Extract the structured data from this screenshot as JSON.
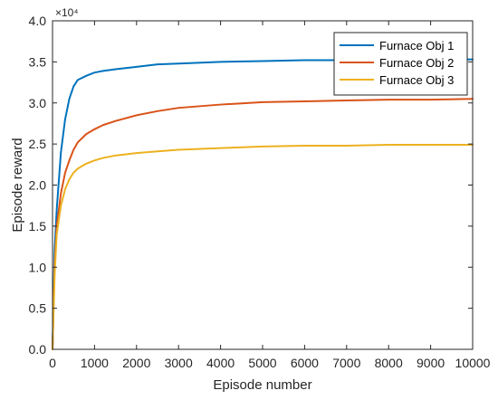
{
  "chart_data": {
    "type": "line",
    "title": "",
    "xlabel": "Episode number",
    "ylabel": "Episode reward",
    "y_multiplier_label": "×10⁴",
    "xlim": [
      0,
      10000
    ],
    "ylim": [
      0,
      4.0
    ],
    "x_ticks": [
      0,
      1000,
      2000,
      3000,
      4000,
      5000,
      6000,
      7000,
      8000,
      9000,
      10000
    ],
    "y_ticks": [
      0.0,
      0.5,
      1.0,
      1.5,
      2.0,
      2.5,
      3.0,
      3.5,
      4.0
    ],
    "y_tick_labels": [
      "0.0",
      "0.5",
      "1.0",
      "1.5",
      "2.0",
      "2.5",
      "3.0",
      "3.5",
      "4.0"
    ],
    "grid": false,
    "legend_position": "top-right",
    "series": [
      {
        "name": "Furnace Obj 1",
        "color": "#0072BD",
        "x": [
          0,
          50,
          100,
          200,
          300,
          400,
          500,
          600,
          800,
          1000,
          1200,
          1500,
          2000,
          2500,
          3000,
          4000,
          5000,
          6000,
          7000,
          8000,
          9000,
          10000
        ],
        "y": [
          0.0,
          1.2,
          1.7,
          2.4,
          2.8,
          3.05,
          3.2,
          3.28,
          3.33,
          3.37,
          3.39,
          3.41,
          3.44,
          3.47,
          3.48,
          3.5,
          3.51,
          3.52,
          3.52,
          3.53,
          3.53,
          3.53
        ]
      },
      {
        "name": "Furnace Obj 2",
        "color": "#D95319",
        "x": [
          0,
          50,
          100,
          200,
          300,
          400,
          500,
          600,
          800,
          1000,
          1200,
          1500,
          2000,
          2500,
          3000,
          4000,
          5000,
          6000,
          7000,
          8000,
          9000,
          10000
        ],
        "y": [
          0.0,
          1.0,
          1.5,
          1.9,
          2.15,
          2.3,
          2.43,
          2.52,
          2.62,
          2.68,
          2.73,
          2.78,
          2.85,
          2.9,
          2.94,
          2.98,
          3.01,
          3.02,
          3.03,
          3.04,
          3.04,
          3.05
        ]
      },
      {
        "name": "Furnace Obj 3",
        "color": "#EDB120",
        "x": [
          0,
          50,
          100,
          200,
          300,
          400,
          500,
          600,
          800,
          1000,
          1200,
          1500,
          2000,
          2500,
          3000,
          4000,
          5000,
          6000,
          7000,
          8000,
          9000,
          10000
        ],
        "y": [
          0.0,
          0.9,
          1.4,
          1.75,
          1.95,
          2.07,
          2.15,
          2.2,
          2.26,
          2.3,
          2.33,
          2.36,
          2.39,
          2.41,
          2.43,
          2.45,
          2.47,
          2.48,
          2.48,
          2.49,
          2.49,
          2.49
        ]
      }
    ]
  }
}
